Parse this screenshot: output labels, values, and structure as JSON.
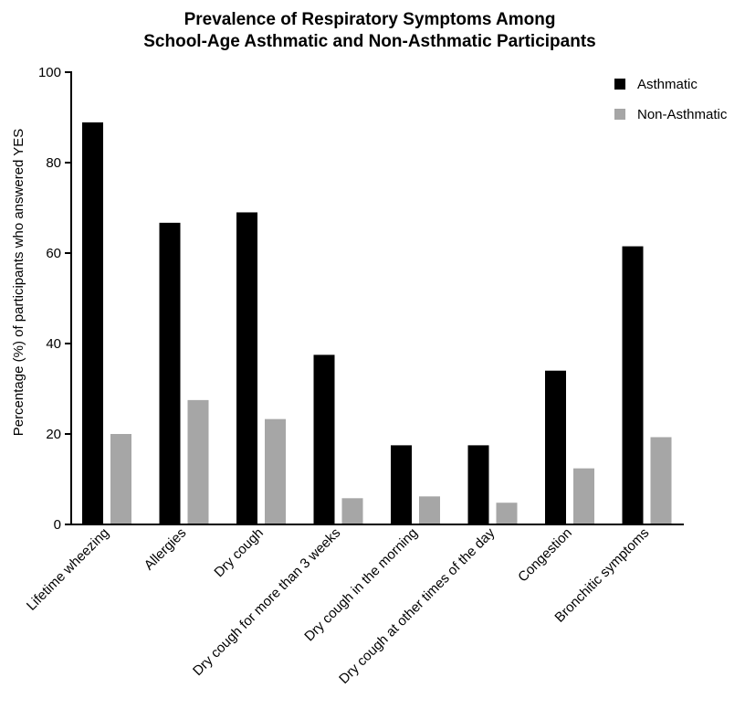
{
  "chart_data": {
    "type": "bar",
    "title": "Prevalence of Respiratory Symptoms Among",
    "subtitle": "School-Age Asthmatic and Non-Asthmatic Participants",
    "xlabel": "",
    "ylabel": "Percentage (%) of participants who answered YES",
    "ylim": [
      0,
      100
    ],
    "yticks": [
      "0",
      "20",
      "40",
      "60",
      "80",
      "100"
    ],
    "categories": [
      "Lifetime wheezing",
      "Allergies",
      "Dry cough",
      "Dry cough for more than 3 weeks",
      "Dry cough in the morning",
      "Dry cough at other times of the day",
      "Congestion",
      "Bronchitic symptoms"
    ],
    "series": [
      {
        "name": "Asthmatic",
        "color": "#000000",
        "values": [
          88.9,
          66.7,
          69.0,
          37.5,
          17.5,
          17.5,
          34.0,
          61.5
        ]
      },
      {
        "name": "Non-Asthmatic",
        "color": "#a6a6a6",
        "values": [
          20.0,
          27.5,
          23.3,
          5.8,
          6.2,
          4.8,
          12.4,
          19.3
        ]
      }
    ],
    "grid": false,
    "legend_position": "top-right"
  }
}
